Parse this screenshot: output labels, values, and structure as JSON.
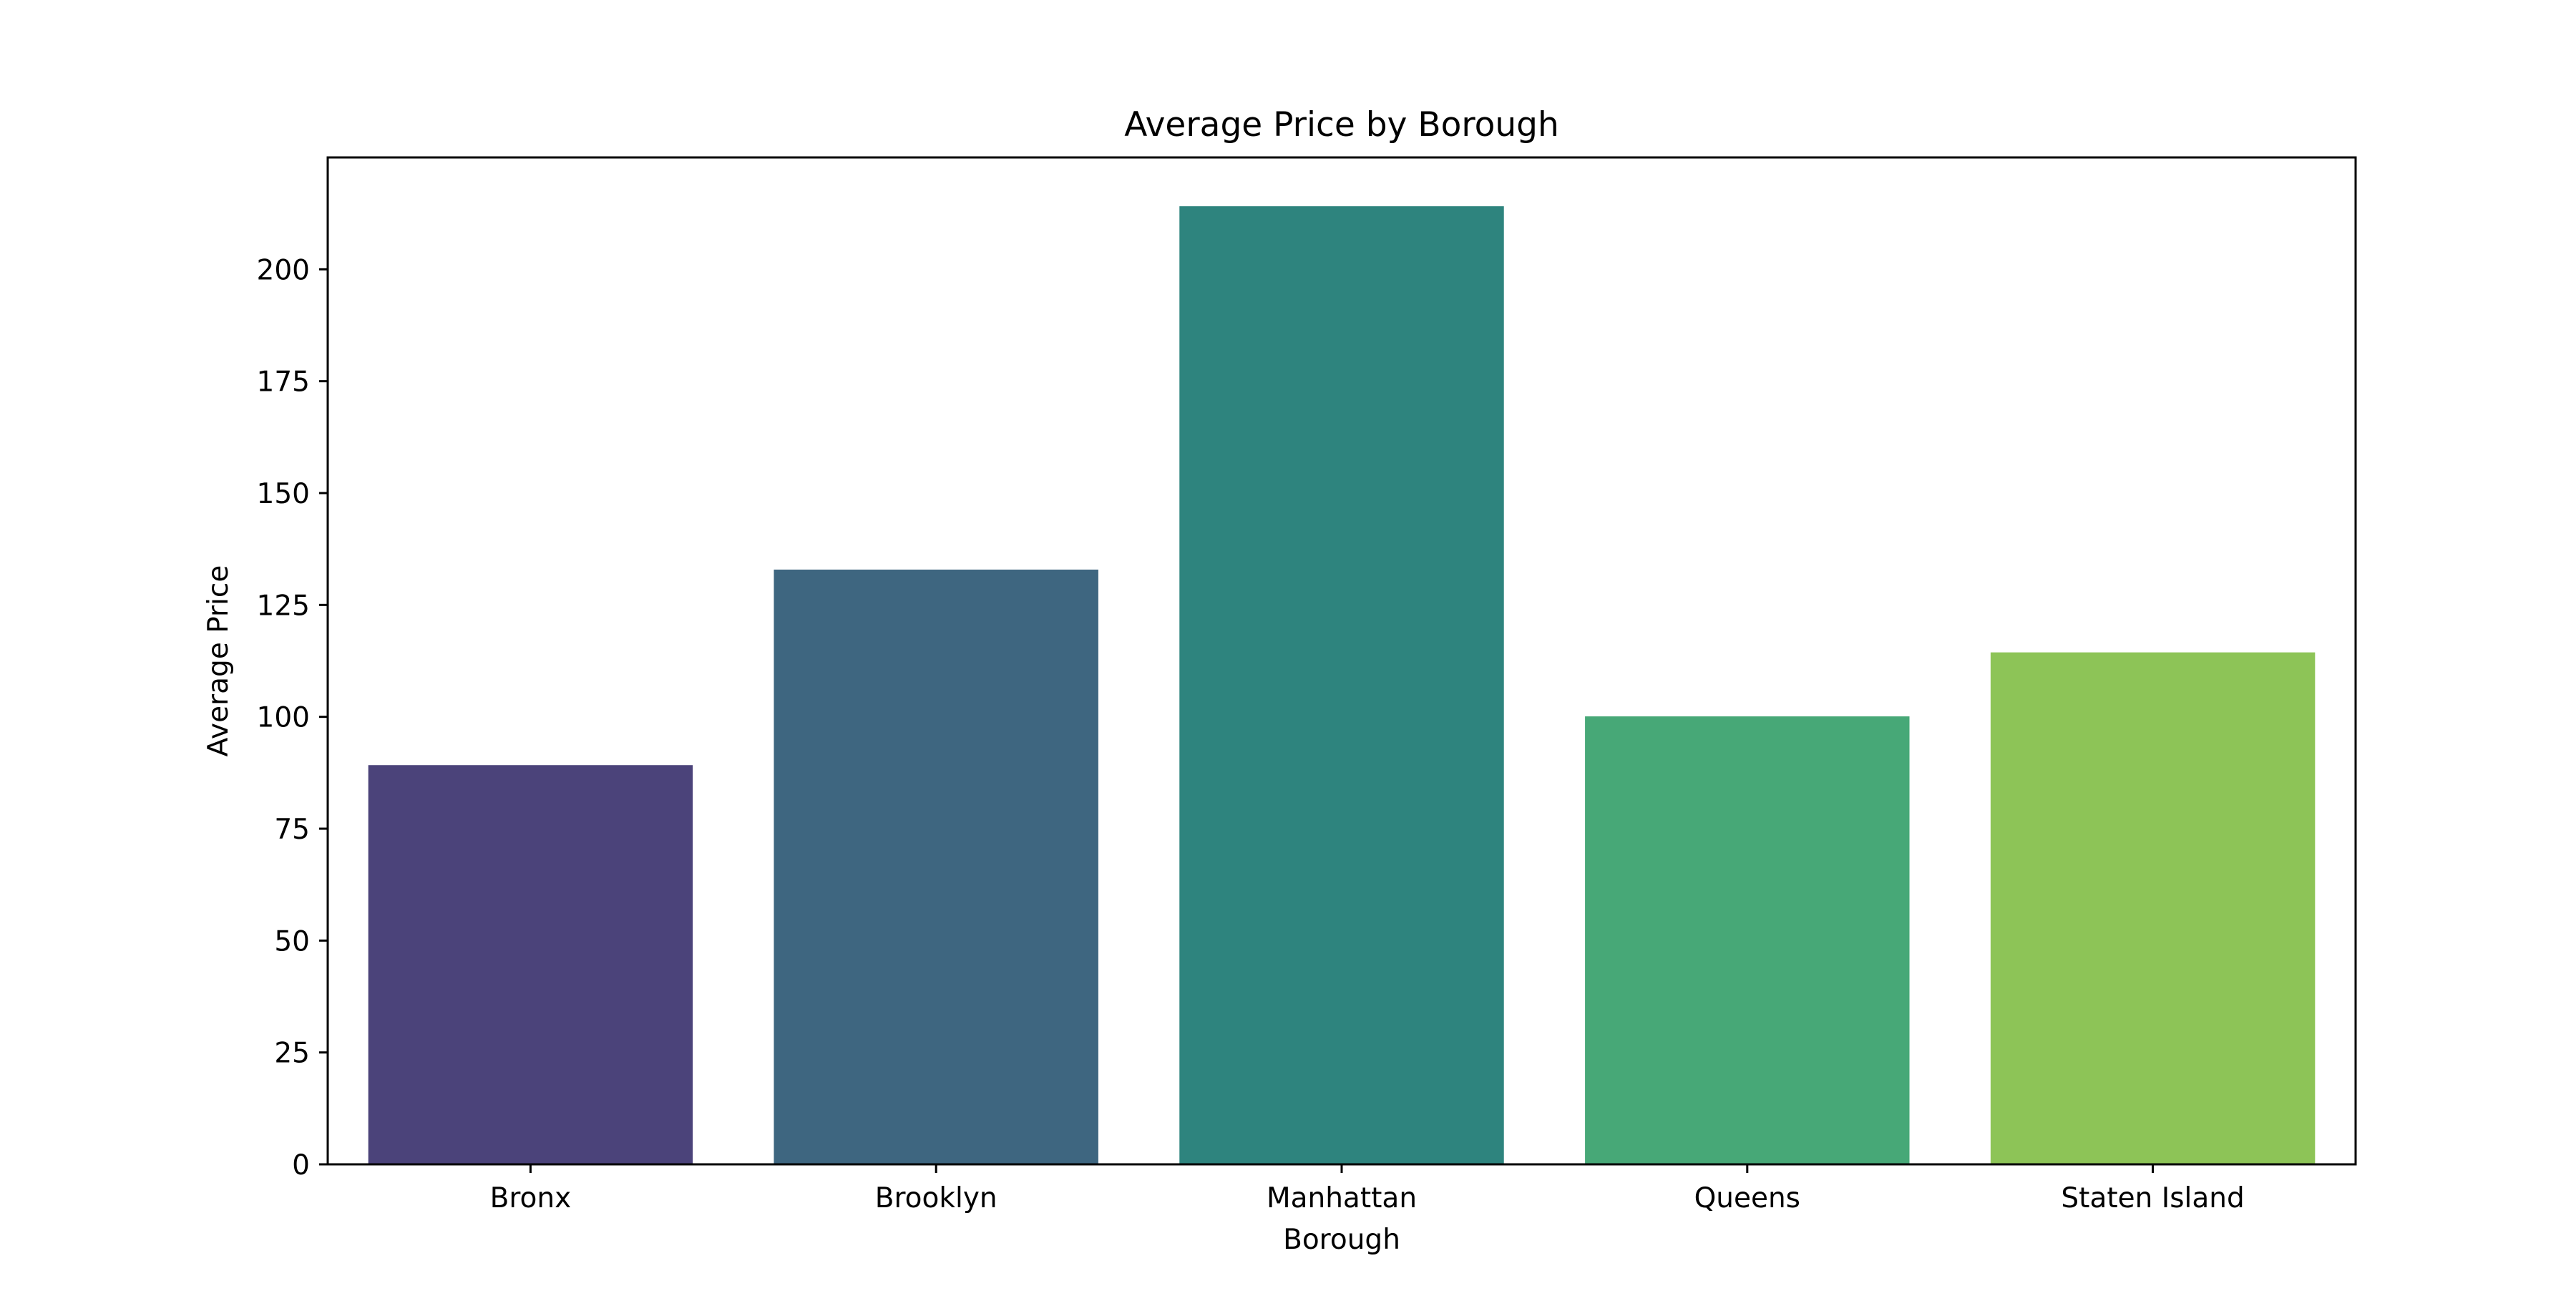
{
  "chart_data": {
    "type": "bar",
    "title": "Average Price by Borough",
    "xlabel": "Borough",
    "ylabel": "Average Price",
    "categories": [
      "Bronx",
      "Brooklyn",
      "Manhattan",
      "Queens",
      "Staten Island"
    ],
    "values": [
      89.2,
      132.9,
      214.1,
      100.1,
      114.4
    ],
    "colors": [
      "#4b437a",
      "#3e6680",
      "#2e847e",
      "#47a877",
      "#8dc457"
    ],
    "ylim": [
      0,
      225
    ],
    "yticks": [
      0,
      25,
      50,
      75,
      100,
      125,
      150,
      175,
      200
    ],
    "grid": false,
    "legend": "none"
  }
}
